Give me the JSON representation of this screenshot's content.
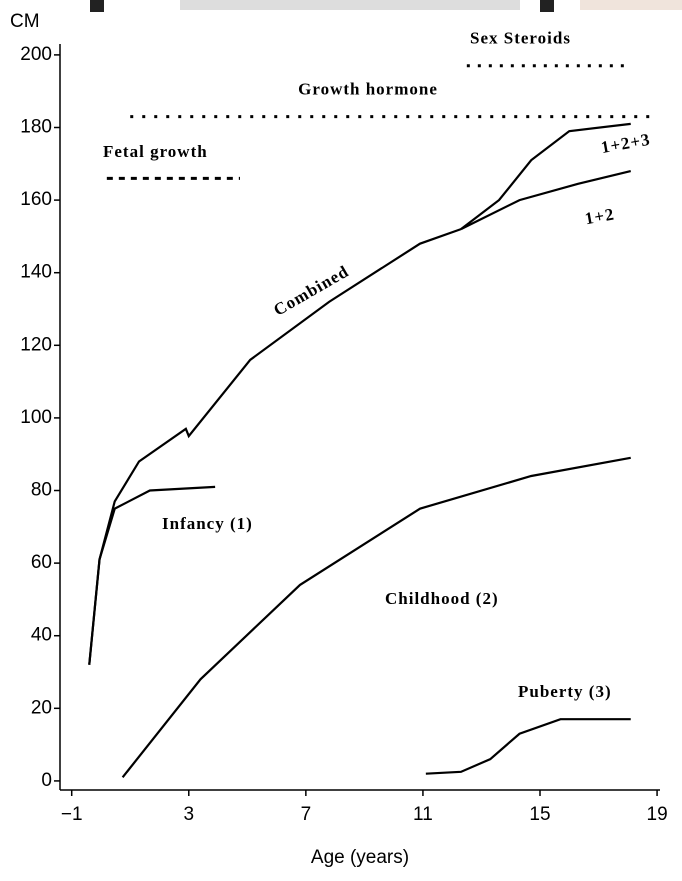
{
  "chart_data": {
    "type": "line",
    "y_axis_label": "CM",
    "x_axis_label": "Age (years)",
    "xlim": [
      -1.4,
      19.1
    ],
    "ylim": [
      -2.5,
      203
    ],
    "xticks": [
      {
        "value": -1,
        "label": "−1"
      },
      3,
      7,
      11,
      15,
      19
    ],
    "yticks": [
      0,
      20,
      40,
      60,
      80,
      100,
      120,
      140,
      160,
      180,
      200
    ],
    "series": [
      {
        "name": "Combined",
        "color": "#000000",
        "x": [
          -0.4,
          -0.05,
          0.47,
          1.3,
          2.9,
          3.0,
          5.1,
          7.8,
          10.9,
          12.3
        ],
        "values": [
          32,
          61,
          77,
          88,
          97,
          95,
          116,
          132,
          148,
          152
        ]
      },
      {
        "name": "1+2",
        "color": "#000000",
        "x": [
          12.3,
          14.3,
          16.3,
          18.1
        ],
        "values": [
          152,
          160,
          164.5,
          168
        ]
      },
      {
        "name": "1+2+3",
        "color": "#000000",
        "x": [
          12.3,
          13.6,
          14.7,
          16.0,
          18.1
        ],
        "values": [
          152,
          160,
          171,
          179,
          181
        ]
      },
      {
        "name": "Infancy (1)",
        "color": "#000000",
        "x": [
          -0.4,
          -0.05,
          0.47,
          1.67,
          3.9
        ],
        "values": [
          32,
          61,
          75,
          80,
          81
        ]
      },
      {
        "name": "Childhood (2)",
        "color": "#000000",
        "x": [
          0.74,
          3.4,
          6.8,
          10.9,
          14.7,
          18.1
        ],
        "values": [
          1,
          28,
          54,
          75,
          84,
          89
        ]
      },
      {
        "name": "Puberty (3)",
        "color": "#000000",
        "x": [
          11.1,
          12.3,
          13.3,
          14.3,
          15.7,
          18.1
        ],
        "values": [
          2,
          2.5,
          6,
          13,
          17,
          17
        ]
      }
    ],
    "periods": [
      {
        "label": "Sex Steroids",
        "start": 12.5,
        "end": 17.9,
        "y": 197
      },
      {
        "label": "Growth hormone",
        "start": 1.0,
        "end": 18.8,
        "y": 183
      },
      {
        "label": "Fetal growth",
        "start": 0.2,
        "end": 4.75,
        "y": 166
      }
    ]
  }
}
